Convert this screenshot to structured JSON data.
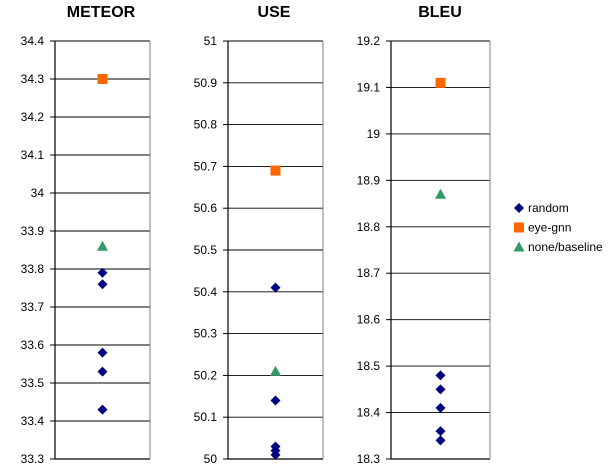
{
  "chart_data": [
    {
      "type": "scatter",
      "title": "METEOR",
      "ylim": [
        33.3,
        34.4
      ],
      "yticks": [
        "33.3",
        "33.4",
        "33.5",
        "33.6",
        "33.7",
        "33.8",
        "33.9",
        "34",
        "34.1",
        "34.2",
        "34.3",
        "34.4"
      ],
      "grid": "horizontal",
      "series": [
        {
          "name": "random",
          "marker": "diamond",
          "color": "#000080",
          "values": [
            33.79,
            33.76,
            33.58,
            33.53,
            33.43
          ]
        },
        {
          "name": "eye-gnn",
          "marker": "square",
          "color": "#FF6600",
          "values": [
            34.3
          ]
        },
        {
          "name": "none/baseline",
          "marker": "triangle",
          "color": "#339966",
          "values": [
            33.86
          ]
        }
      ]
    },
    {
      "type": "scatter",
      "title": "USE",
      "ylim": [
        50,
        51
      ],
      "yticks": [
        "50",
        "50.1",
        "50.2",
        "50.3",
        "50.4",
        "50.5",
        "50.6",
        "50.7",
        "50.8",
        "50.9",
        "51"
      ],
      "grid": "horizontal",
      "series": [
        {
          "name": "random",
          "marker": "diamond",
          "color": "#000080",
          "values": [
            50.41,
            50.14,
            50.03,
            50.02,
            50.01
          ]
        },
        {
          "name": "eye-gnn",
          "marker": "square",
          "color": "#FF6600",
          "values": [
            50.69
          ]
        },
        {
          "name": "none/baseline",
          "marker": "triangle",
          "color": "#339966",
          "values": [
            50.21
          ]
        }
      ]
    },
    {
      "type": "scatter",
      "title": "BLEU",
      "ylim": [
        18.3,
        19.2
      ],
      "yticks": [
        "18.3",
        "18.4",
        "18.5",
        "18.6",
        "18.7",
        "18.8",
        "18.9",
        "19",
        "19.1",
        "19.2"
      ],
      "grid": "horizontal",
      "series": [
        {
          "name": "random",
          "marker": "diamond",
          "color": "#000080",
          "values": [
            18.48,
            18.45,
            18.41,
            18.36,
            18.34
          ]
        },
        {
          "name": "eye-gnn",
          "marker": "square",
          "color": "#FF6600",
          "values": [
            19.11
          ]
        },
        {
          "name": "none/baseline",
          "marker": "triangle",
          "color": "#339966",
          "values": [
            18.87
          ]
        }
      ]
    }
  ],
  "legend": {
    "placement": "right",
    "items": [
      {
        "label": "random",
        "marker": "diamond",
        "color": "#000080"
      },
      {
        "label": "eye-gnn",
        "marker": "square",
        "color": "#FF6600"
      },
      {
        "label": "none/baseline",
        "marker": "triangle",
        "color": "#339966"
      }
    ]
  }
}
